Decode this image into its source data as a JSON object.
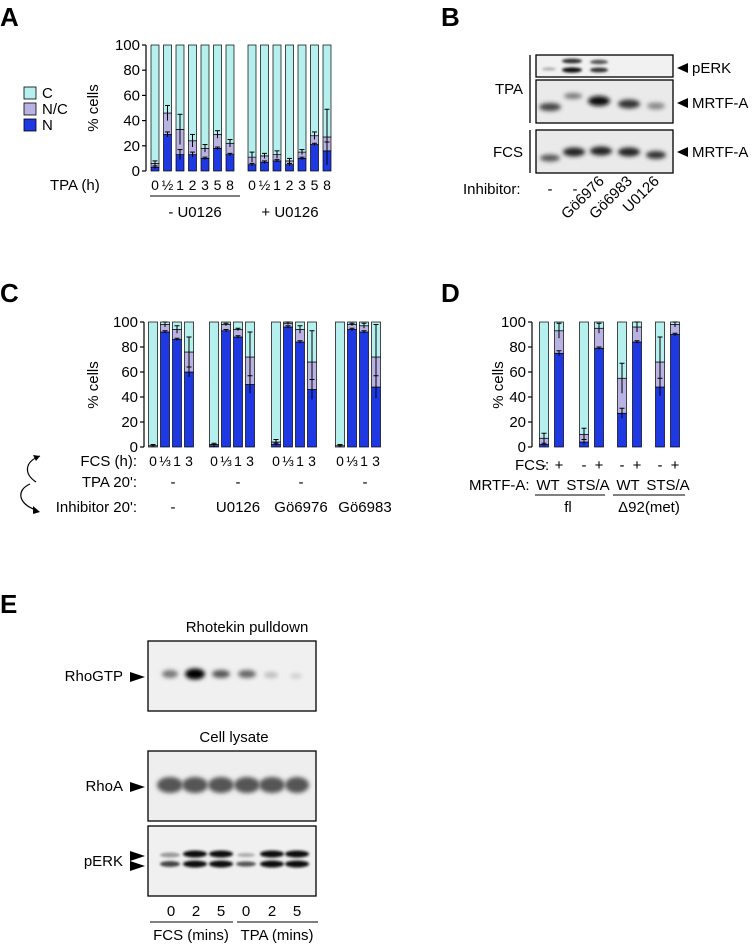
{
  "panel_labels": {
    "a": "A",
    "b": "B",
    "c": "C",
    "d": "D",
    "e": "E"
  },
  "colors": {
    "C": "#b5f0ee",
    "NC": "#b8b3e2",
    "N": "#1e39e2",
    "blot_bg": "#ebebeb",
    "band": "#1a1a1a"
  },
  "panelA": {
    "ylabel": "% cells",
    "yticks": [
      "0",
      "20",
      "40",
      "60",
      "80",
      "100"
    ],
    "legend": [
      "C",
      "N/C",
      "N"
    ],
    "xrow_label": "TPA (h)",
    "times": [
      "0",
      "½",
      "1",
      "2",
      "3",
      "5",
      "8"
    ],
    "groups": [
      "- U0126",
      "+ U0126"
    ]
  },
  "panelB": {
    "group_labels": [
      "TPA",
      "FCS"
    ],
    "band_labels": [
      "pERK",
      "MRTF-A",
      "MRTF-A"
    ],
    "inhibitor_label": "Inhibitor:",
    "lanes": [
      "-",
      "-",
      "Gö6976",
      "Gö6983",
      "U0126"
    ]
  },
  "panelC": {
    "ylabel": "% cells",
    "yticks": [
      "0",
      "20",
      "40",
      "60",
      "80",
      "100"
    ],
    "row_labels": [
      "FCS (h):",
      "TPA 20':",
      "Inhibitor 20':"
    ],
    "times": [
      "0",
      "⅓",
      "1",
      "3"
    ],
    "tpa_marks": [
      "-",
      "-",
      "-",
      "-"
    ],
    "inhibitors": [
      "-",
      "U0126",
      "Gö6976",
      "Gö6983"
    ]
  },
  "panelD": {
    "ylabel": "% cells",
    "yticks": [
      "0",
      "20",
      "40",
      "60",
      "80",
      "100"
    ],
    "fcs_label": "FCS:",
    "fcs_marks": [
      "-",
      "+"
    ],
    "mrtf_label": "MRTF-A:",
    "mrtf_values": [
      "WT",
      "STS/A",
      "WT",
      "STS/A"
    ],
    "constructs": [
      "fl",
      "Δ92(met)"
    ]
  },
  "panelE": {
    "pulldown_title": "Rhotekin pulldown",
    "lysate_title": "Cell lysate",
    "band_labels": [
      "RhoGTP",
      "RhoA",
      "pERK"
    ],
    "times": [
      "0",
      "2",
      "5",
      "0",
      "2",
      "5"
    ],
    "groups": [
      "FCS (mins)",
      "TPA (mins)"
    ]
  },
  "chart_data": [
    {
      "type": "bar",
      "panel": "A",
      "ylabel": "% cells",
      "ylim": [
        0,
        100
      ],
      "stacked": true,
      "categories": [
        "0",
        "½",
        "1",
        "2",
        "3",
        "5",
        "8",
        "0",
        "½",
        "1",
        "2",
        "3",
        "5",
        "8"
      ],
      "series": [
        {
          "name": "N",
          "values": [
            3,
            29,
            13,
            13,
            10,
            18,
            13,
            5,
            7,
            8,
            5,
            10,
            21,
            16
          ]
        },
        {
          "name": "N/C",
          "values": [
            3,
            17,
            20,
            11,
            8,
            11,
            9,
            6,
            5,
            5,
            3,
            5,
            7,
            11
          ]
        },
        {
          "name": "C",
          "values": [
            94,
            54,
            67,
            76,
            82,
            71,
            78,
            89,
            88,
            87,
            92,
            85,
            72,
            73
          ]
        }
      ],
      "errors": [
        2,
        6,
        12,
        5,
        3,
        3,
        3,
        4,
        2,
        3,
        2,
        2,
        3,
        22
      ]
    },
    {
      "type": "bar",
      "panel": "C",
      "ylabel": "% cells",
      "ylim": [
        0,
        100
      ],
      "stacked": true,
      "categories": [
        "0",
        "⅓",
        "1",
        "3",
        "0",
        "⅓",
        "1",
        "3",
        "0",
        "⅓",
        "1",
        "3",
        "0",
        "⅓",
        "1",
        "3"
      ],
      "series": [
        {
          "name": "N",
          "values": [
            0,
            92,
            86,
            60,
            1,
            93,
            88,
            50,
            2,
            96,
            84,
            46,
            0,
            94,
            92,
            48
          ]
        },
        {
          "name": "N/C",
          "values": [
            1,
            6,
            8,
            16,
            1,
            5,
            6,
            22,
            2,
            3,
            10,
            22,
            1,
            4,
            5,
            24
          ]
        },
        {
          "name": "C",
          "values": [
            99,
            2,
            6,
            24,
            98,
            2,
            6,
            28,
            96,
            1,
            6,
            32,
            99,
            2,
            3,
            28
          ]
        }
      ],
      "errors": [
        1,
        2,
        3,
        12,
        1,
        1,
        1,
        20,
        2,
        1,
        3,
        25,
        1,
        1,
        2,
        26
      ]
    },
    {
      "type": "bar",
      "panel": "D",
      "ylabel": "% cells",
      "ylim": [
        0,
        100
      ],
      "stacked": true,
      "categories": [
        "-",
        "+",
        "-",
        "+",
        "-",
        "+",
        "-",
        "+"
      ],
      "series": [
        {
          "name": "N",
          "values": [
            2,
            75,
            4,
            79,
            27,
            84,
            48,
            90
          ]
        },
        {
          "name": "N/C",
          "values": [
            5,
            18,
            6,
            16,
            28,
            12,
            20,
            8
          ]
        },
        {
          "name": "C",
          "values": [
            93,
            7,
            90,
            5,
            45,
            4,
            32,
            2
          ]
        }
      ],
      "errors": [
        4,
        6,
        5,
        4,
        12,
        4,
        20,
        2
      ]
    }
  ]
}
